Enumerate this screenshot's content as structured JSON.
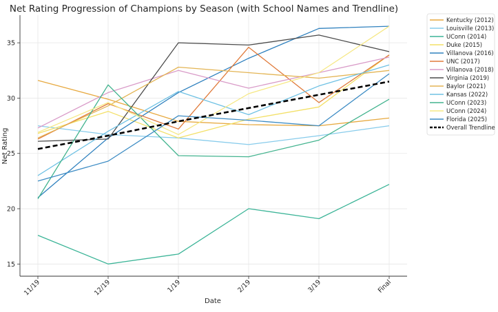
{
  "chart_data": {
    "type": "line",
    "title": "Net Rating Progression of Champions by Season (with School Names and Trendline)",
    "xlabel": "Date",
    "ylabel": "Net Rating",
    "categories": [
      "11/19",
      "12/19",
      "1/19",
      "2/19",
      "3/19",
      "Final"
    ],
    "yticks": [
      15,
      20,
      25,
      30,
      35
    ],
    "ylim": [
      13.9,
      37.5
    ],
    "grid": true,
    "legend_position": "outside-right",
    "series": [
      {
        "name": "Kentucky (2012)",
        "color": "#E7A93F",
        "values": [
          31.6,
          29.9,
          27.9,
          27.6,
          27.5,
          28.2
        ]
      },
      {
        "name": "Louisville (2013)",
        "color": "#86CBEB",
        "values": [
          27.5,
          26.7,
          26.4,
          25.8,
          26.6,
          27.5
        ]
      },
      {
        "name": "UConn (2014)",
        "color": "#3BB497",
        "values": [
          17.6,
          15.0,
          15.9,
          20.0,
          19.1,
          22.2
        ]
      },
      {
        "name": "Duke (2015)",
        "color": "#F3E067",
        "values": [
          26.8,
          28.8,
          26.4,
          28.1,
          29.2,
          33.9
        ]
      },
      {
        "name": "Villanova (2016)",
        "color": "#2E80BE",
        "values": [
          21.0,
          26.4,
          30.5,
          33.6,
          36.3,
          36.5
        ]
      },
      {
        "name": "UNC (2017)",
        "color": "#E07A3A",
        "values": [
          26.3,
          29.5,
          27.2,
          34.6,
          29.6,
          33.9
        ]
      },
      {
        "name": "Villanova (2018)",
        "color": "#D99BC8",
        "values": [
          27.3,
          30.5,
          32.5,
          30.9,
          32.3,
          33.7
        ]
      },
      {
        "name": "Virginia (2019)",
        "color": "#4A4A4A",
        "values": [
          26.1,
          26.3,
          35.0,
          34.8,
          35.7,
          34.2
        ]
      },
      {
        "name": "Baylor (2021)",
        "color": "#E3B453",
        "values": [
          26.4,
          29.3,
          32.8,
          32.3,
          31.8,
          32.5
        ]
      },
      {
        "name": "Kansas (2022)",
        "color": "#6EC1E4",
        "values": [
          23.0,
          27.0,
          30.6,
          28.5,
          31.1,
          33.0
        ]
      },
      {
        "name": "UConn (2023)",
        "color": "#42B38E",
        "values": [
          20.9,
          31.2,
          24.8,
          24.7,
          26.2,
          29.9
        ]
      },
      {
        "name": "UConn (2024)",
        "color": "#F6E884",
        "values": [
          26.9,
          29.6,
          26.7,
          30.4,
          32.3,
          36.5
        ]
      },
      {
        "name": "Florida (2025)",
        "color": "#3D8CC4",
        "values": [
          22.5,
          24.3,
          28.4,
          28.0,
          27.5,
          32.2
        ]
      }
    ],
    "trendline": {
      "name": "Overall Trendline",
      "color": "#000000",
      "values": [
        25.4,
        26.6,
        27.9,
        29.1,
        30.3,
        31.5
      ]
    }
  }
}
